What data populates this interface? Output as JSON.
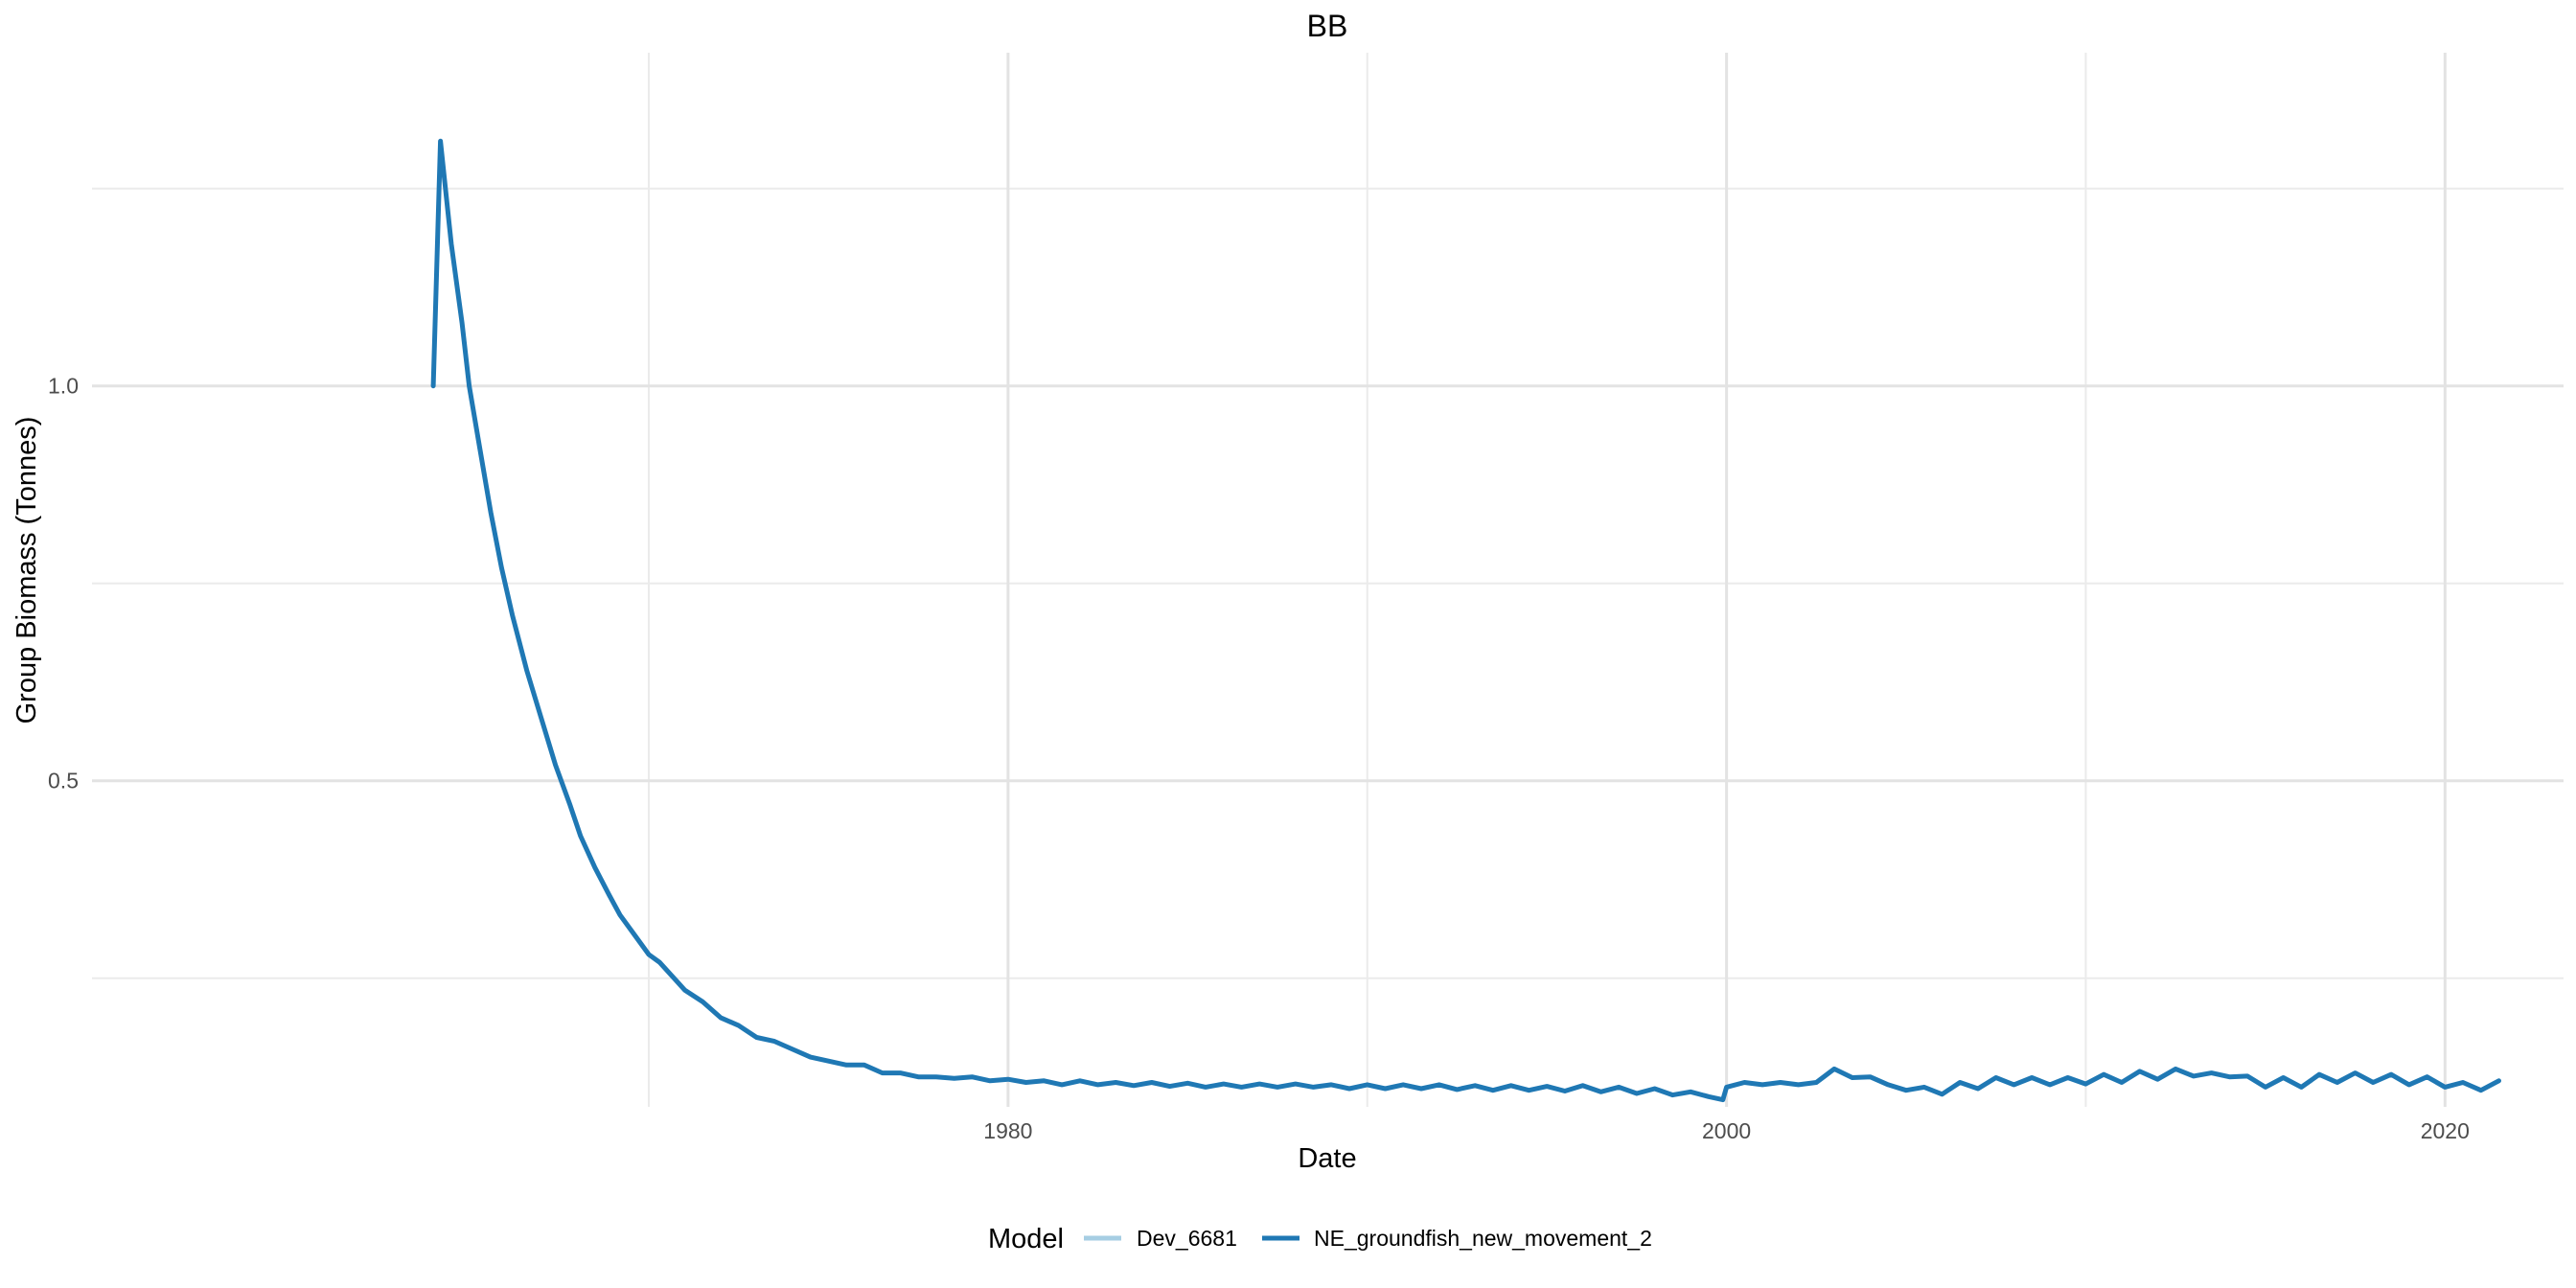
{
  "chart_data": {
    "type": "line",
    "title": "BB",
    "xlabel": "Date",
    "ylabel": "Group Biomass (Tonnes)",
    "xlim": [
      1954.5,
      2023.3
    ],
    "ylim": [
      0.087,
      1.422
    ],
    "x_major_ticks": [
      1980,
      2000,
      2020
    ],
    "x_minor_ticks": [
      1970,
      1990,
      2010
    ],
    "y_major_ticks": [
      0.5,
      1.0
    ],
    "y_minor_ticks": [
      0.25,
      0.75,
      1.25
    ],
    "x_tick_labels": [
      "1980",
      "2000",
      "2020"
    ],
    "y_tick_labels": [
      "0.5",
      "1.0"
    ],
    "grid": true,
    "legend": {
      "title": "Model",
      "position": "bottom",
      "entries": [
        {
          "name": "Dev_6681",
          "color": "#a6cee3"
        },
        {
          "name": "NE_groundfish_new_movement_2",
          "color": "#1f78b4"
        }
      ]
    },
    "series": [
      {
        "name": "NE_groundfish_new_movement_2",
        "color": "#1f78b4",
        "x": [
          1964.0,
          1964.2,
          1964.5,
          1964.8,
          1965.0,
          1965.3,
          1965.6,
          1965.9,
          1966.2,
          1966.6,
          1967.0,
          1967.4,
          1967.8,
          1968.1,
          1968.5,
          1968.9,
          1969.2,
          1969.6,
          1970.0,
          1970.3,
          1970.7,
          1971.0,
          1971.5,
          1972.0,
          1972.5,
          1973.0,
          1973.5,
          1974.0,
          1974.5,
          1975.0,
          1975.5,
          1976.0,
          1976.5,
          1977.0,
          1977.5,
          1978.0,
          1978.5,
          1979.0,
          1979.5,
          1980.0,
          1980.5,
          1981.0,
          1981.5,
          1982.0,
          1982.5,
          1983.0,
          1983.5,
          1984.0,
          1984.5,
          1985.0,
          1985.5,
          1986.0,
          1986.5,
          1987.0,
          1987.5,
          1988.0,
          1988.5,
          1989.0,
          1989.5,
          1990.0,
          1990.5,
          1991.0,
          1991.5,
          1992.0,
          1992.5,
          1993.0,
          1993.5,
          1994.0,
          1994.5,
          1995.0,
          1995.5,
          1996.0,
          1996.5,
          1997.0,
          1997.5,
          1998.0,
          1998.5,
          1999.0,
          1999.5,
          1999.9,
          2000.0,
          2000.5,
          2001.0,
          2001.5,
          2002.0,
          2002.5,
          2003.0,
          2003.5,
          2004.0,
          2004.5,
          2005.0,
          2005.5,
          2006.0,
          2006.5,
          2007.0,
          2007.5,
          2008.0,
          2008.5,
          2009.0,
          2009.5,
          2010.0,
          2010.5,
          2011.0,
          2011.5,
          2012.0,
          2012.5,
          2013.0,
          2013.5,
          2014.0,
          2014.5,
          2015.0,
          2015.5,
          2016.0,
          2016.5,
          2017.0,
          2017.5,
          2018.0,
          2018.5,
          2019.0,
          2019.5,
          2020.0,
          2020.5,
          2021.0,
          2021.5
        ],
        "y": [
          1.0,
          1.31,
          1.18,
          1.08,
          1.0,
          0.92,
          0.84,
          0.77,
          0.71,
          0.64,
          0.58,
          0.52,
          0.47,
          0.43,
          0.39,
          0.355,
          0.33,
          0.305,
          0.28,
          0.27,
          0.25,
          0.235,
          0.22,
          0.2,
          0.19,
          0.175,
          0.17,
          0.16,
          0.15,
          0.145,
          0.14,
          0.14,
          0.13,
          0.13,
          0.125,
          0.125,
          0.123,
          0.125,
          0.12,
          0.122,
          0.118,
          0.12,
          0.115,
          0.12,
          0.115,
          0.118,
          0.114,
          0.118,
          0.113,
          0.117,
          0.112,
          0.116,
          0.112,
          0.116,
          0.112,
          0.116,
          0.112,
          0.115,
          0.11,
          0.115,
          0.11,
          0.115,
          0.11,
          0.115,
          0.109,
          0.114,
          0.108,
          0.114,
          0.108,
          0.113,
          0.107,
          0.114,
          0.106,
          0.112,
          0.104,
          0.11,
          0.102,
          0.106,
          0.1,
          0.096,
          0.112,
          0.118,
          0.115,
          0.118,
          0.115,
          0.118,
          0.135,
          0.124,
          0.125,
          0.115,
          0.108,
          0.112,
          0.103,
          0.118,
          0.11,
          0.124,
          0.115,
          0.124,
          0.115,
          0.124,
          0.116,
          0.128,
          0.118,
          0.132,
          0.122,
          0.135,
          0.126,
          0.13,
          0.125,
          0.126,
          0.112,
          0.124,
          0.112,
          0.128,
          0.118,
          0.13,
          0.118,
          0.128,
          0.115,
          0.125,
          0.112,
          0.118,
          0.108,
          0.12
        ]
      }
    ]
  }
}
